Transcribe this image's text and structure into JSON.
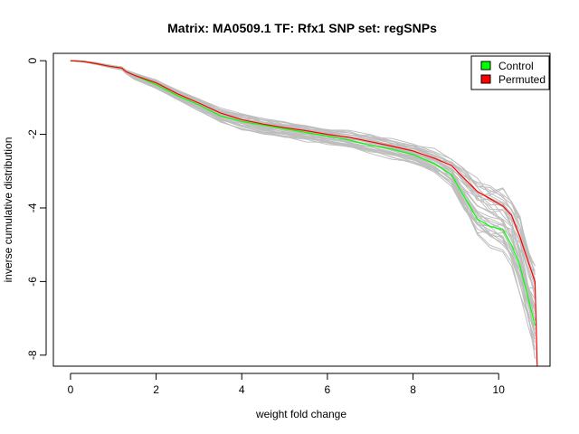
{
  "colors": {
    "background": "#ffffff",
    "permutation_lines": "#bebebe",
    "control": "#00ff00",
    "permuted": "#ff0000",
    "axis": "#000000"
  },
  "chart_data": {
    "type": "line",
    "title": "Matrix: MA0509.1 TF: Rfx1 SNP set: regSNPs",
    "xlabel": "weight fold change",
    "ylabel": "inverse cumulative distribution",
    "xlim": [
      -0.4,
      11.2
    ],
    "ylim": [
      -8.3,
      0.2
    ],
    "xticks": [
      0,
      2,
      4,
      6,
      8,
      10
    ],
    "yticks": [
      0,
      -2,
      -4,
      -6,
      -8
    ],
    "grid": false,
    "legend_position": "top-right",
    "legend": [
      {
        "label": "Control",
        "color": "#00ff00"
      },
      {
        "label": "Permuted",
        "color": "#ff0000"
      }
    ],
    "series": [
      {
        "name": "Control",
        "color": "#00ff00",
        "x": [
          0,
          0.3,
          0.6,
          0.9,
          1.2,
          1.3,
          1.5,
          2.0,
          2.5,
          3.0,
          3.5,
          4.0,
          4.5,
          5.0,
          5.5,
          6.0,
          6.5,
          7.0,
          7.5,
          8.0,
          8.5,
          8.9,
          9.2,
          9.5,
          9.8,
          10.1,
          10.3,
          10.5,
          10.7,
          10.85
        ],
        "y": [
          0,
          -0.02,
          -0.08,
          -0.15,
          -0.2,
          -0.3,
          -0.4,
          -0.65,
          -0.95,
          -1.2,
          -1.5,
          -1.65,
          -1.75,
          -1.85,
          -1.95,
          -2.05,
          -2.15,
          -2.3,
          -2.4,
          -2.55,
          -2.8,
          -3.1,
          -3.7,
          -4.3,
          -4.5,
          -4.6,
          -5.0,
          -5.6,
          -6.5,
          -7.2
        ]
      },
      {
        "name": "Permuted",
        "color": "#ff0000",
        "x": [
          0,
          0.3,
          0.6,
          0.9,
          1.2,
          1.3,
          1.5,
          2.0,
          2.5,
          3.0,
          3.5,
          4.0,
          4.5,
          5.0,
          5.5,
          6.0,
          6.5,
          7.0,
          7.5,
          8.0,
          8.5,
          8.9,
          9.2,
          9.5,
          9.8,
          10.1,
          10.3,
          10.5,
          10.7,
          10.85,
          10.9
        ],
        "y": [
          0,
          -0.02,
          -0.08,
          -0.15,
          -0.2,
          -0.3,
          -0.4,
          -0.6,
          -0.9,
          -1.15,
          -1.42,
          -1.6,
          -1.72,
          -1.82,
          -1.9,
          -2.0,
          -2.08,
          -2.2,
          -2.32,
          -2.45,
          -2.65,
          -2.85,
          -3.2,
          -3.55,
          -3.75,
          -3.95,
          -4.2,
          -4.8,
          -5.5,
          -6.0,
          -8.3
        ]
      }
    ],
    "background_curves": {
      "count": 34,
      "color": "#bebebe",
      "x": [
        0,
        0.3,
        0.6,
        0.9,
        1.2,
        1.3,
        1.5,
        2.0,
        2.5,
        3.0,
        3.5,
        4.0,
        4.5,
        5.0,
        5.5,
        6.0,
        6.5,
        7.0,
        7.5,
        8.0,
        8.5,
        8.9,
        9.2,
        9.5,
        9.8,
        10.1,
        10.3,
        10.5,
        10.7,
        10.85
      ],
      "lower_envelope_y": [
        0,
        -0.03,
        -0.1,
        -0.18,
        -0.25,
        -0.35,
        -0.5,
        -0.75,
        -1.05,
        -1.35,
        -1.65,
        -1.85,
        -1.97,
        -2.07,
        -2.17,
        -2.27,
        -2.37,
        -2.5,
        -2.62,
        -2.78,
        -3.05,
        -3.4,
        -4.1,
        -4.7,
        -4.95,
        -5.1,
        -5.5,
        -6.2,
        -7.2,
        -7.9
      ],
      "upper_envelope_y": [
        0,
        -0.01,
        -0.05,
        -0.12,
        -0.17,
        -0.26,
        -0.35,
        -0.52,
        -0.8,
        -1.05,
        -1.3,
        -1.45,
        -1.57,
        -1.67,
        -1.75,
        -1.85,
        -1.92,
        -2.02,
        -2.15,
        -2.28,
        -2.45,
        -2.65,
        -2.95,
        -3.25,
        -3.45,
        -3.6,
        -3.85,
        -4.3,
        -5.1,
        -5.5
      ]
    }
  }
}
